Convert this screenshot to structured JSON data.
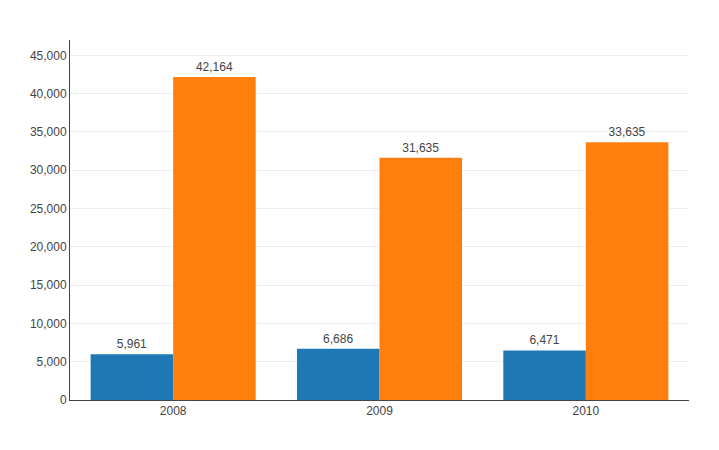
{
  "chart_data": {
    "type": "bar",
    "categories": [
      "2008",
      "2009",
      "2010"
    ],
    "series": [
      {
        "values": [
          5961,
          6686,
          6471
        ],
        "value_labels": [
          "5,961",
          "6,686",
          "6,471"
        ]
      },
      {
        "values": [
          42164,
          31635,
          33635
        ],
        "value_labels": [
          "42,164",
          "31,635",
          "33,635"
        ]
      }
    ],
    "ylim": [
      0,
      47000
    ],
    "yticks": [
      0,
      {
        "value": 5000,
        "label": "5,000"
      },
      {
        "value": 10000,
        "label": "10,000"
      },
      {
        "value": 15000,
        "label": "15,000"
      },
      {
        "value": 20000,
        "label": "20,000"
      },
      {
        "value": 25000,
        "label": "25,000"
      },
      {
        "value": 30000,
        "label": "30,000"
      },
      {
        "value": 35000,
        "label": "35,000"
      },
      {
        "value": 40000,
        "label": "40,000"
      },
      {
        "value": 45000,
        "label": "45,000"
      }
    ],
    "grid": true,
    "data_labels": true
  }
}
